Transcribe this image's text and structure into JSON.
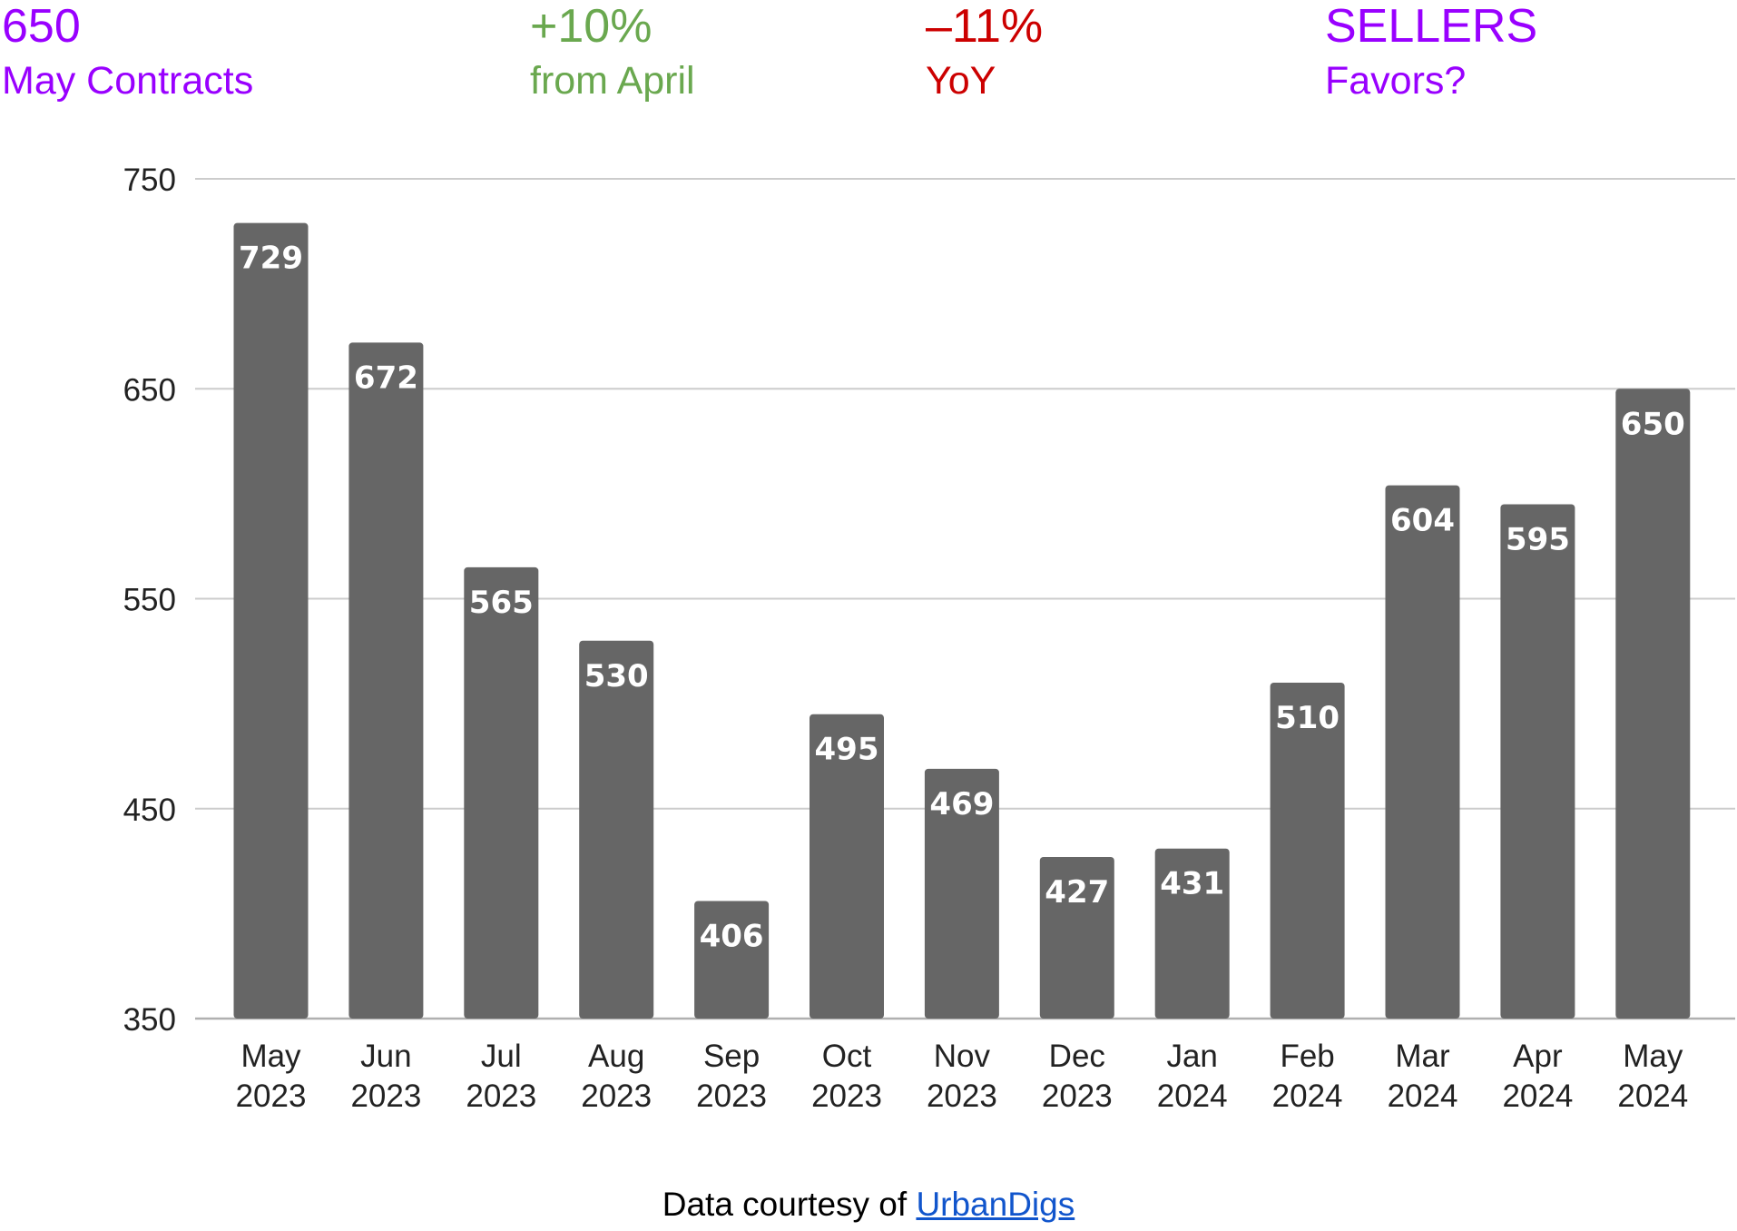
{
  "header": {
    "stats": [
      {
        "value": "650",
        "label": "May Contracts",
        "color": "#9900ff"
      },
      {
        "value": "+10%",
        "label": "from April",
        "color": "#6aa84f"
      },
      {
        "value": "–11%",
        "label": "YoY",
        "color": "#cc0000"
      },
      {
        "value": "SELLERS",
        "label": "Favors?",
        "color": "#9900ff"
      }
    ]
  },
  "chart_data": {
    "type": "bar",
    "categories": [
      [
        "May",
        "2023"
      ],
      [
        "Jun",
        "2023"
      ],
      [
        "Jul",
        "2023"
      ],
      [
        "Aug",
        "2023"
      ],
      [
        "Sep",
        "2023"
      ],
      [
        "Oct",
        "2023"
      ],
      [
        "Nov",
        "2023"
      ],
      [
        "Dec",
        "2023"
      ],
      [
        "Jan",
        "2024"
      ],
      [
        "Feb",
        "2024"
      ],
      [
        "Mar",
        "2024"
      ],
      [
        "Apr",
        "2024"
      ],
      [
        "May",
        "2024"
      ]
    ],
    "values": [
      729,
      672,
      565,
      530,
      406,
      495,
      469,
      427,
      431,
      510,
      604,
      595,
      650
    ],
    "ylim": [
      350,
      750
    ],
    "yticks": [
      350,
      450,
      550,
      650,
      750
    ],
    "grid": true,
    "bar_color": "#666666",
    "label_color": "#ffffff",
    "title": "",
    "xlabel": "",
    "ylabel": ""
  },
  "footer": {
    "prefix": "Data courtesy of ",
    "link_text": "UrbanDigs"
  }
}
